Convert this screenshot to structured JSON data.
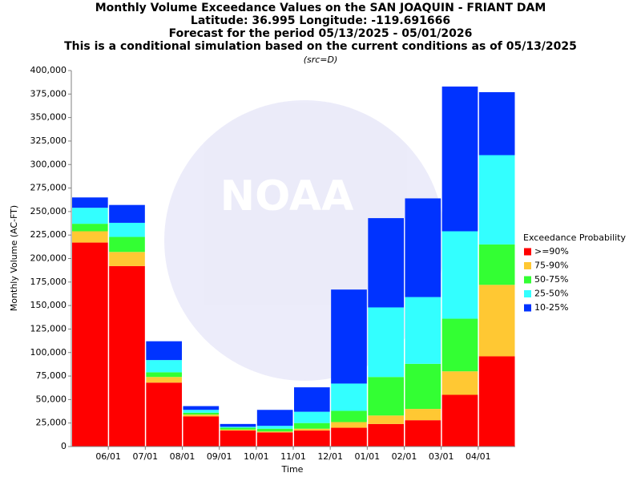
{
  "chart_data": {
    "type": "stacked-bar",
    "title": [
      "Monthly Volume Exceedance Values on the SAN JOAQUIN - FRIANT DAM",
      "Latitude: 36.995 Longitude: -119.691666",
      "Forecast for the period 05/13/2025 - 05/01/2026",
      "This is a conditional simulation based on the current conditions as of 05/13/2025"
    ],
    "subtitle": "(src=D)",
    "watermark": "NOAA",
    "x_label": "Time",
    "y_label": "Monthly Volume (AC-FT)",
    "categories": [
      null,
      null,
      null,
      null,
      null,
      null,
      null,
      null,
      null,
      null,
      null,
      null
    ],
    "boundary_labels": [
      "06/01",
      "07/01",
      "08/01",
      "09/01",
      "10/01",
      "11/01",
      "12/01",
      "01/01",
      "02/01",
      "03/01",
      "04/01"
    ],
    "legend_title": "Exceedance Probability",
    "legend_position": "right",
    "series": [
      {
        "name": ">=90%",
        "color": "#ff0000",
        "values": [
          217000,
          192000,
          68000,
          32000,
          17000,
          15000,
          17000,
          20000,
          24000,
          28000,
          55000,
          96000
        ]
      },
      {
        "name": "75-90%",
        "color": "#ffc833",
        "values": [
          12000,
          15000,
          6000,
          2000,
          1000,
          1000,
          2000,
          6000,
          9000,
          12000,
          25000,
          76000
        ]
      },
      {
        "name": "50-75%",
        "color": "#33ff33",
        "values": [
          8000,
          16000,
          5000,
          2000,
          2000,
          3000,
          6000,
          12000,
          41000,
          48000,
          56000,
          43000
        ]
      },
      {
        "name": "25-50%",
        "color": "#33ffff",
        "values": [
          17000,
          15000,
          13000,
          3000,
          1000,
          3000,
          12000,
          29000,
          74000,
          71000,
          93000,
          95000
        ]
      },
      {
        "name": "10-25%",
        "color": "#0033ff",
        "values": [
          11000,
          19000,
          20000,
          4000,
          3000,
          17000,
          26000,
          100000,
          95000,
          105000,
          154000,
          67000
        ]
      }
    ],
    "ylim": [
      0,
      400000
    ],
    "yticks": [
      0,
      {
        "value": 25000,
        "label": "25,000"
      },
      {
        "value": 50000,
        "label": "50,000"
      },
      {
        "value": 75000,
        "label": "75,000"
      },
      {
        "value": 100000,
        "label": "100,000"
      },
      {
        "value": 125000,
        "label": "125,000"
      },
      {
        "value": 150000,
        "label": "150,000"
      },
      {
        "value": 175000,
        "label": "175,000"
      },
      {
        "value": 200000,
        "label": "200,000"
      },
      {
        "value": 225000,
        "label": "225,000"
      },
      {
        "value": 250000,
        "label": "250,000"
      },
      {
        "value": 275000,
        "label": "275,000"
      },
      {
        "value": 300000,
        "label": "300,000"
      },
      {
        "value": 325000,
        "label": "325,000"
      },
      {
        "value": 350000,
        "label": "350,000"
      },
      {
        "value": 375000,
        "label": "375,000"
      },
      {
        "value": 400000,
        "label": "400,000"
      }
    ],
    "grid": false
  }
}
